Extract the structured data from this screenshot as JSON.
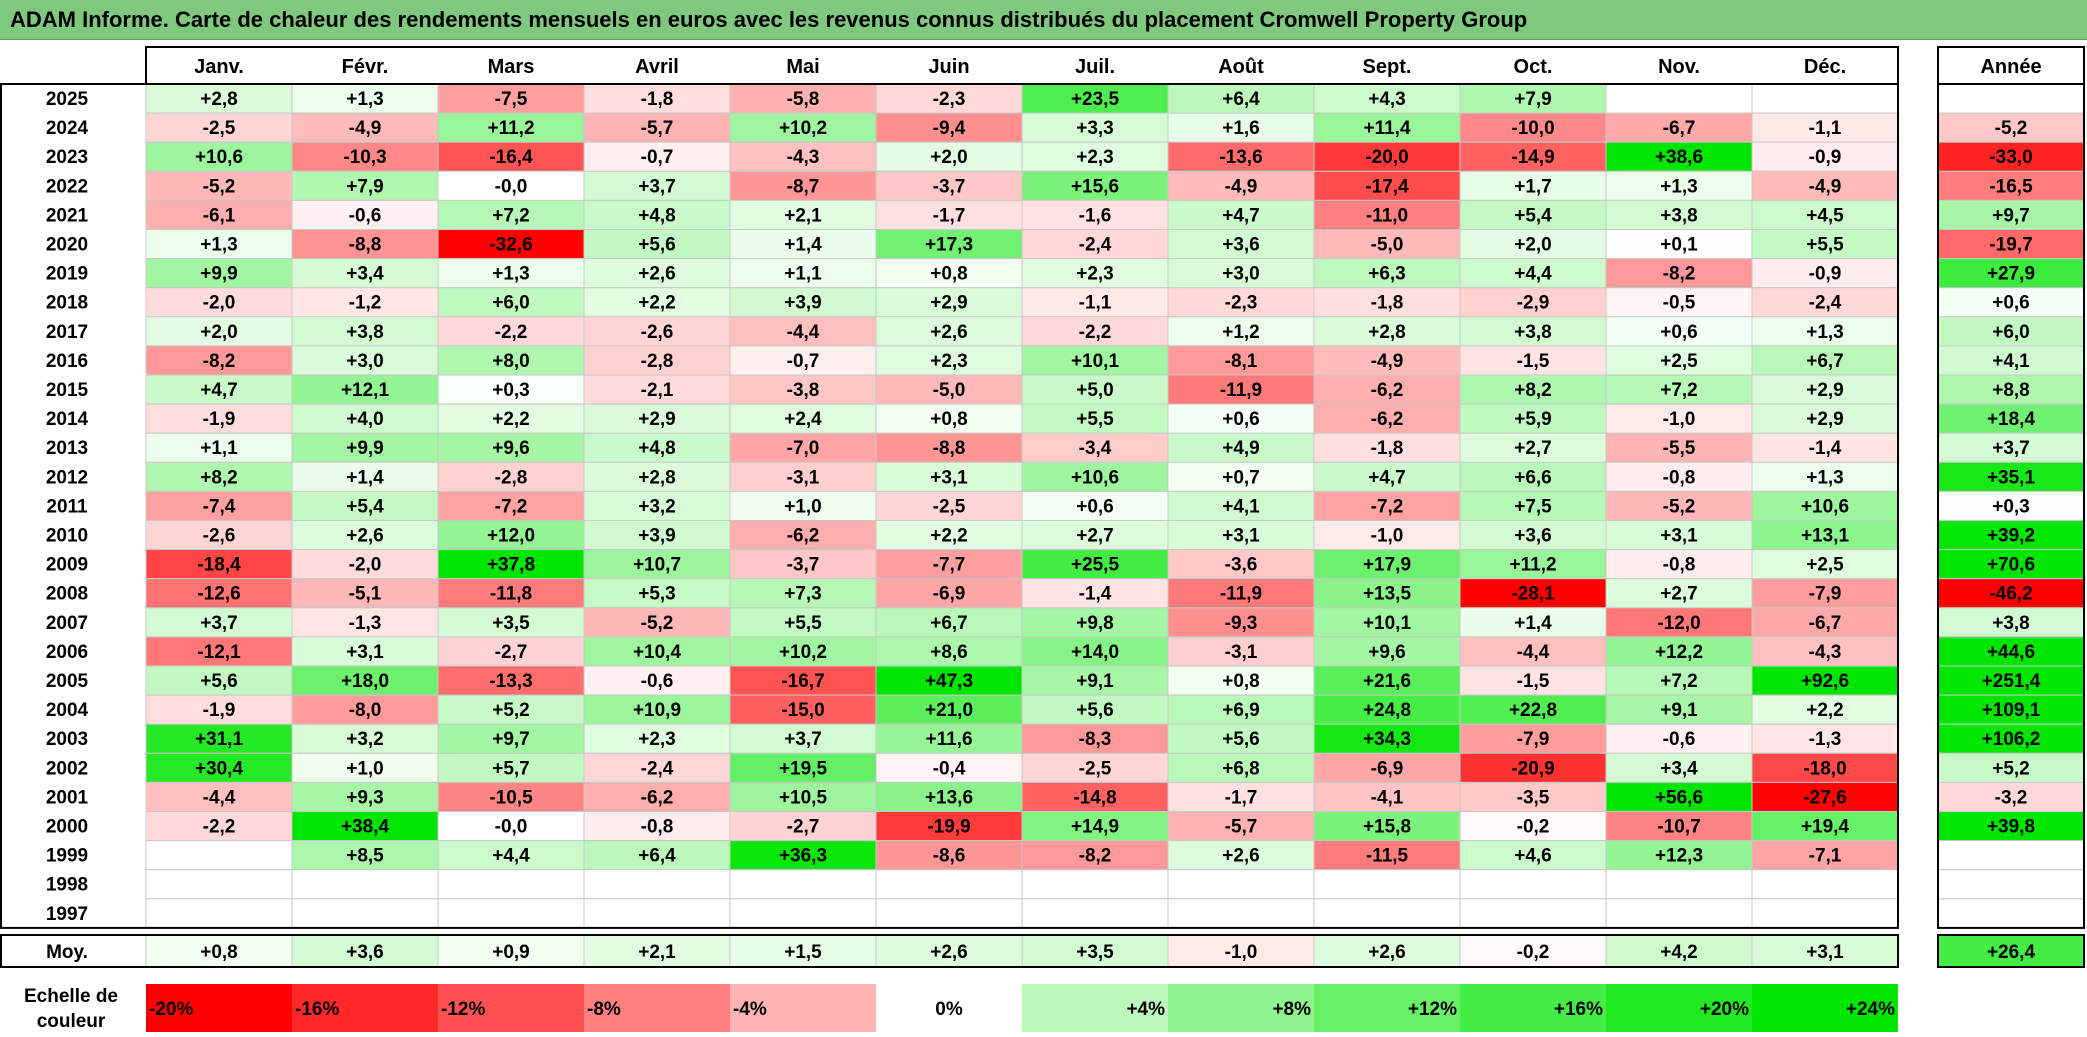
{
  "title": "ADAM Informe. Carte de chaleur des rendements mensuels en euros avec les revenus connus distribués du placement Cromwell Property Group",
  "chart_data": {
    "type": "heatmap",
    "title": "ADAM Informe. Carte de chaleur des rendements mensuels en euros avec les revenus connus distribués du placement Cromwell Property Group",
    "months": [
      "Janv.",
      "Févr.",
      "Mars",
      "Avril",
      "Mai",
      "Juin",
      "Juil.",
      "Août",
      "Sept.",
      "Oct.",
      "Nov.",
      "Déc."
    ],
    "year_header": "Année",
    "rows": [
      {
        "year": "2025",
        "values": [
          "+2,8",
          "+1,3",
          "-7,5",
          "-1,8",
          "-5,8",
          "-2,3",
          "+23,5",
          "+6,4",
          "+4,3",
          "+7,9",
          "",
          ""
        ],
        "annual": ""
      },
      {
        "year": "2024",
        "values": [
          "-2,5",
          "-4,9",
          "+11,2",
          "-5,7",
          "+10,2",
          "-9,4",
          "+3,3",
          "+1,6",
          "+11,4",
          "-10,0",
          "-6,7",
          "-1,1"
        ],
        "annual": "-5,2"
      },
      {
        "year": "2023",
        "values": [
          "+10,6",
          "-10,3",
          "-16,4",
          "-0,7",
          "-4,3",
          "+2,0",
          "+2,3",
          "-13,6",
          "-20,0",
          "-14,9",
          "+38,6",
          "-0,9"
        ],
        "annual": "-33,0"
      },
      {
        "year": "2022",
        "values": [
          "-5,2",
          "+7,9",
          "-0,0",
          "+3,7",
          "-8,7",
          "-3,7",
          "+15,6",
          "-4,9",
          "-17,4",
          "+1,7",
          "+1,3",
          "-4,9"
        ],
        "annual": "-16,5"
      },
      {
        "year": "2021",
        "values": [
          "-6,1",
          "-0,6",
          "+7,2",
          "+4,8",
          "+2,1",
          "-1,7",
          "-1,6",
          "+4,7",
          "-11,0",
          "+5,4",
          "+3,8",
          "+4,5"
        ],
        "annual": "+9,7"
      },
      {
        "year": "2020",
        "values": [
          "+1,3",
          "-8,8",
          "-32,6",
          "+5,6",
          "+1,4",
          "+17,3",
          "-2,4",
          "+3,6",
          "-5,0",
          "+2,0",
          "+0,1",
          "+5,5"
        ],
        "annual": "-19,7"
      },
      {
        "year": "2019",
        "values": [
          "+9,9",
          "+3,4",
          "+1,3",
          "+2,6",
          "+1,1",
          "+0,8",
          "+2,3",
          "+3,0",
          "+6,3",
          "+4,4",
          "-8,2",
          "-0,9"
        ],
        "annual": "+27,9"
      },
      {
        "year": "2018",
        "values": [
          "-2,0",
          "-1,2",
          "+6,0",
          "+2,2",
          "+3,9",
          "+2,9",
          "-1,1",
          "-2,3",
          "-1,8",
          "-2,9",
          "-0,5",
          "-2,4"
        ],
        "annual": "+0,6"
      },
      {
        "year": "2017",
        "values": [
          "+2,0",
          "+3,8",
          "-2,2",
          "-2,6",
          "-4,4",
          "+2,6",
          "-2,2",
          "+1,2",
          "+2,8",
          "+3,8",
          "+0,6",
          "+1,3"
        ],
        "annual": "+6,0"
      },
      {
        "year": "2016",
        "values": [
          "-8,2",
          "+3,0",
          "+8,0",
          "-2,8",
          "-0,7",
          "+2,3",
          "+10,1",
          "-8,1",
          "-4,9",
          "-1,5",
          "+2,5",
          "+6,7"
        ],
        "annual": "+4,1"
      },
      {
        "year": "2015",
        "values": [
          "+4,7",
          "+12,1",
          "+0,3",
          "-2,1",
          "-3,8",
          "-5,0",
          "+5,0",
          "-11,9",
          "-6,2",
          "+8,2",
          "+7,2",
          "+2,9"
        ],
        "annual": "+8,8"
      },
      {
        "year": "2014",
        "values": [
          "-1,9",
          "+4,0",
          "+2,2",
          "+2,9",
          "+2,4",
          "+0,8",
          "+5,5",
          "+0,6",
          "-6,2",
          "+5,9",
          "-1,0",
          "+2,9"
        ],
        "annual": "+18,4"
      },
      {
        "year": "2013",
        "values": [
          "+1,1",
          "+9,9",
          "+9,6",
          "+4,8",
          "-7,0",
          "-8,8",
          "-3,4",
          "+4,9",
          "-1,8",
          "+2,7",
          "-5,5",
          "-1,4"
        ],
        "annual": "+3,7"
      },
      {
        "year": "2012",
        "values": [
          "+8,2",
          "+1,4",
          "-2,8",
          "+2,8",
          "-3,1",
          "+3,1",
          "+10,6",
          "+0,7",
          "+4,7",
          "+6,6",
          "-0,8",
          "+1,3"
        ],
        "annual": "+35,1"
      },
      {
        "year": "2011",
        "values": [
          "-7,4",
          "+5,4",
          "-7,2",
          "+3,2",
          "+1,0",
          "-2,5",
          "+0,6",
          "+4,1",
          "-7,2",
          "+7,5",
          "-5,2",
          "+10,6"
        ],
        "annual": "+0,3"
      },
      {
        "year": "2010",
        "values": [
          "-2,6",
          "+2,6",
          "+12,0",
          "+3,9",
          "-6,2",
          "+2,2",
          "+2,7",
          "+3,1",
          "-1,0",
          "+3,6",
          "+3,1",
          "+13,1"
        ],
        "annual": "+39,2"
      },
      {
        "year": "2009",
        "values": [
          "-18,4",
          "-2,0",
          "+37,8",
          "+10,7",
          "-3,7",
          "-7,7",
          "+25,5",
          "-3,6",
          "+17,9",
          "+11,2",
          "-0,8",
          "+2,5"
        ],
        "annual": "+70,6"
      },
      {
        "year": "2008",
        "values": [
          "-12,6",
          "-5,1",
          "-11,8",
          "+5,3",
          "+7,3",
          "-6,9",
          "-1,4",
          "-11,9",
          "+13,5",
          "-28,1",
          "+2,7",
          "-7,9"
        ],
        "annual": "-46,2"
      },
      {
        "year": "2007",
        "values": [
          "+3,7",
          "-1,3",
          "+3,5",
          "-5,2",
          "+5,5",
          "+6,7",
          "+9,8",
          "-9,3",
          "+10,1",
          "+1,4",
          "-12,0",
          "-6,7"
        ],
        "annual": "+3,8"
      },
      {
        "year": "2006",
        "values": [
          "-12,1",
          "+3,1",
          "-2,7",
          "+10,4",
          "+10,2",
          "+8,6",
          "+14,0",
          "-3,1",
          "+9,6",
          "-4,4",
          "+12,2",
          "-4,3"
        ],
        "annual": "+44,6"
      },
      {
        "year": "2005",
        "values": [
          "+5,6",
          "+18,0",
          "-13,3",
          "-0,6",
          "-16,7",
          "+47,3",
          "+9,1",
          "+0,8",
          "+21,6",
          "-1,5",
          "+7,2",
          "+92,6"
        ],
        "annual": "+251,4"
      },
      {
        "year": "2004",
        "values": [
          "-1,9",
          "-8,0",
          "+5,2",
          "+10,9",
          "-15,0",
          "+21,0",
          "+5,6",
          "+6,9",
          "+24,8",
          "+22,8",
          "+9,1",
          "+2,2"
        ],
        "annual": "+109,1"
      },
      {
        "year": "2003",
        "values": [
          "+31,1",
          "+3,2",
          "+9,7",
          "+2,3",
          "+3,7",
          "+11,6",
          "-8,3",
          "+5,6",
          "+34,3",
          "-7,9",
          "-0,6",
          "-1,3"
        ],
        "annual": "+106,2"
      },
      {
        "year": "2002",
        "values": [
          "+30,4",
          "+1,0",
          "+5,7",
          "-2,4",
          "+19,5",
          "-0,4",
          "-2,5",
          "+6,8",
          "-6,9",
          "-20,9",
          "+3,4",
          "-18,0"
        ],
        "annual": "+5,2"
      },
      {
        "year": "2001",
        "values": [
          "-4,4",
          "+9,3",
          "-10,5",
          "-6,2",
          "+10,5",
          "+13,6",
          "-14,8",
          "-1,7",
          "-4,1",
          "-3,5",
          "+56,6",
          "-27,6"
        ],
        "annual": "-3,2"
      },
      {
        "year": "2000",
        "values": [
          "-2,2",
          "+38,4",
          "-0,0",
          "-0,8",
          "-2,7",
          "-19,9",
          "+14,9",
          "-5,7",
          "+15,8",
          "-0,2",
          "-10,7",
          "+19,4"
        ],
        "annual": "+39,8"
      },
      {
        "year": "1999",
        "values": [
          "",
          "+8,5",
          "+4,4",
          "+6,4",
          "+36,3",
          "-8,6",
          "-8,2",
          "+2,6",
          "-11,5",
          "+4,6",
          "+12,3",
          "-7,1"
        ],
        "annual": ""
      },
      {
        "year": "1998",
        "values": [
          "",
          "",
          "",
          "",
          "",
          "",
          "",
          "",
          "",
          "",
          "",
          ""
        ],
        "annual": ""
      },
      {
        "year": "1997",
        "values": [
          "",
          "",
          "",
          "",
          "",
          "",
          "",
          "",
          "",
          "",
          "",
          ""
        ],
        "annual": ""
      }
    ],
    "average": {
      "label": "Moy.",
      "values": [
        "+0,8",
        "+3,6",
        "+0,9",
        "+2,1",
        "+1,5",
        "+2,6",
        "+3,5",
        "-1,0",
        "+2,6",
        "-0,2",
        "+4,2",
        "+3,1"
      ],
      "annual": "+26,4"
    },
    "scale": {
      "label_line1": "Echelle de",
      "label_line2": "couleur",
      "stops": [
        "-20%",
        "-16%",
        "-12%",
        "-8%",
        "-4%",
        "0%",
        "+4%",
        "+8%",
        "+12%",
        "+16%",
        "+20%",
        "+24%"
      ],
      "stop_values": [
        -20,
        -16,
        -12,
        -8,
        -4,
        0,
        4,
        8,
        12,
        16,
        20,
        24
      ]
    },
    "colors": {
      "negative_max": "#ff0000",
      "neutral": "#ffffff",
      "positive_max": "#00e600",
      "title_background": "#7fc97f"
    }
  }
}
